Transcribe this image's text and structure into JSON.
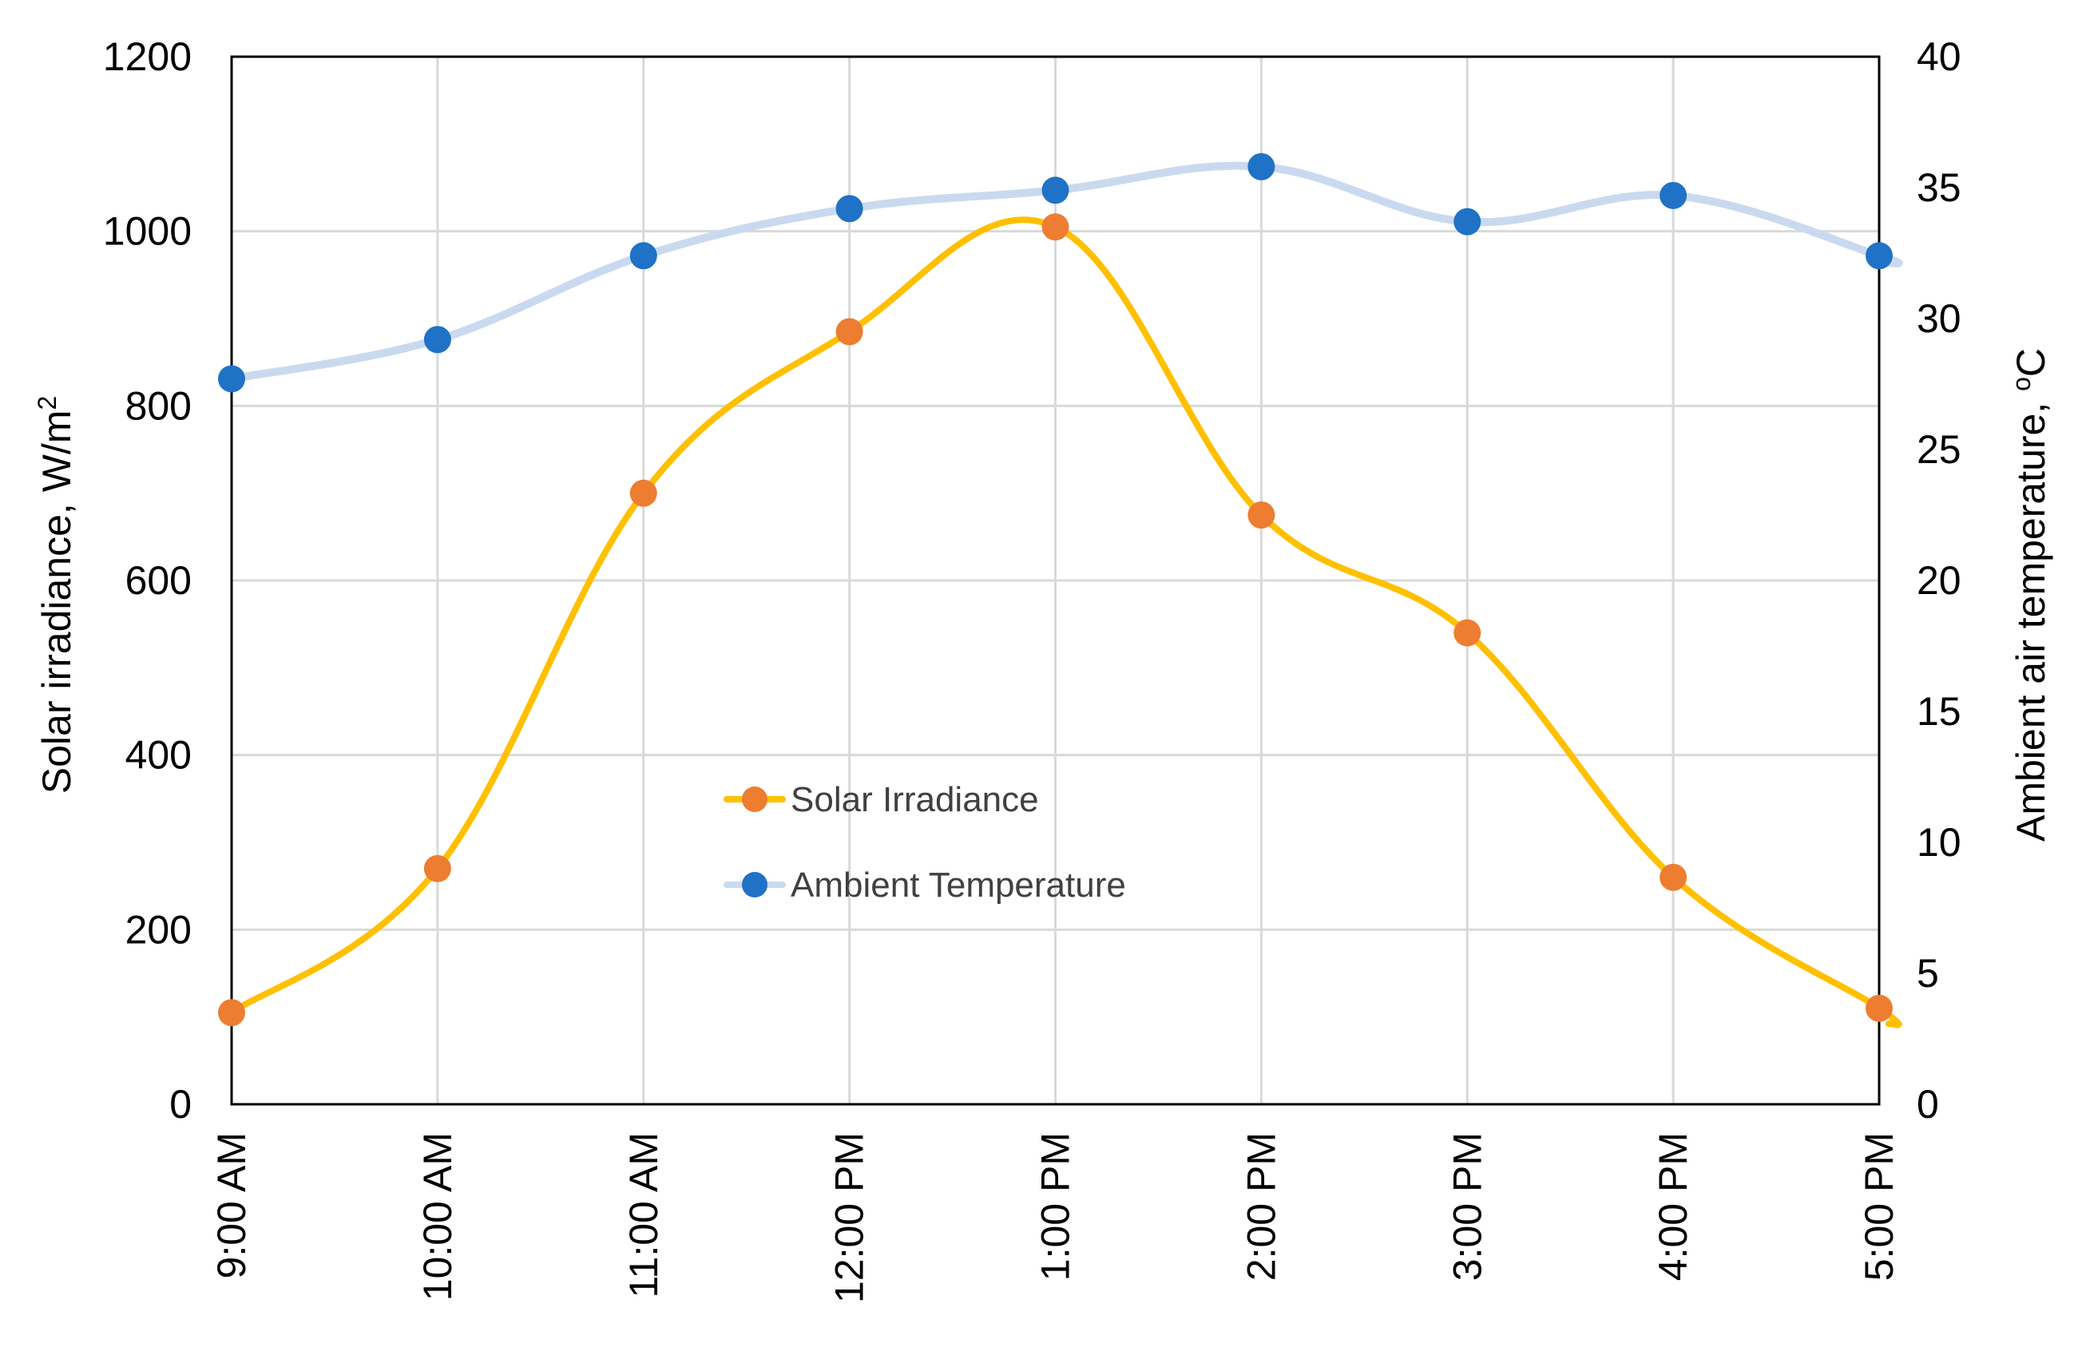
{
  "chart_data": {
    "type": "line",
    "title": "",
    "x": [
      "9:00 AM",
      "10:00 AM",
      "11:00 AM",
      "12:00 PM",
      "1:00 PM",
      "2:00 PM",
      "3:00 PM",
      "4:00 PM",
      "5:00 PM"
    ],
    "xlabel": "",
    "ylabel": "Solar irradiance,  W/m",
    "ylabel_superscript": "2",
    "ylim": [
      0,
      1200
    ],
    "yticks": [
      0,
      200,
      400,
      600,
      800,
      1000,
      1200
    ],
    "y2label": "Ambient  air  temperature,  ",
    "y2label_superscript": "o",
    "y2label_unit": "C",
    "y2lim": [
      0,
      40
    ],
    "y2ticks": [
      0,
      5,
      10,
      15,
      20,
      25,
      30,
      35,
      40
    ],
    "grid": true,
    "legend_position": "center",
    "series": [
      {
        "name": "Solar Irradiance",
        "axis": "left",
        "line_color": "#FFC000",
        "marker_color": "#ED7D31",
        "values": [
          105,
          270,
          700,
          885,
          1005,
          675,
          540,
          260,
          110
        ]
      },
      {
        "name": "Ambient Temperature",
        "axis": "right",
        "line_color": "#C9DAF0",
        "marker_color": "#1F72C6",
        "values": [
          27.7,
          29.2,
          32.4,
          34.2,
          34.9,
          35.8,
          33.7,
          34.7,
          32.4
        ]
      }
    ]
  }
}
